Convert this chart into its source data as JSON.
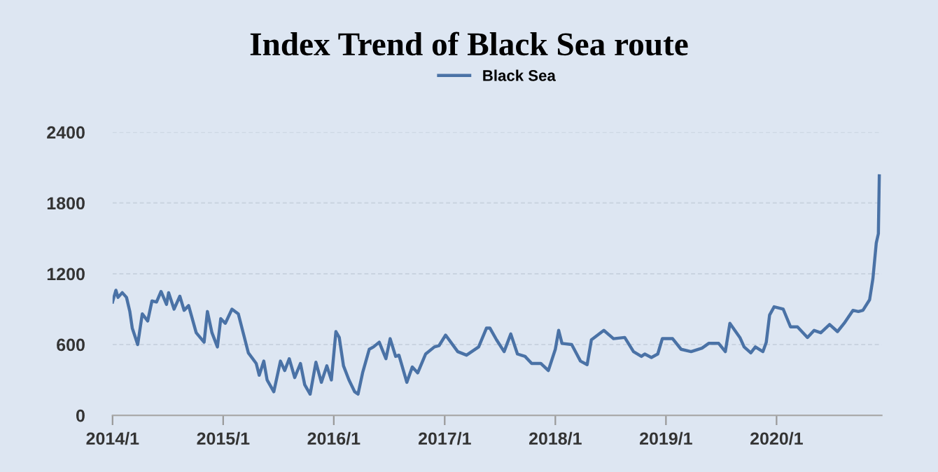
{
  "chart_data": {
    "type": "line",
    "title": "Index Trend of Black Sea route",
    "x": [
      "2014-01-01",
      "2014-01-12",
      "2014-01-19",
      "2014-02-02",
      "2014-02-16",
      "2014-02-27",
      "2014-03-07",
      "2014-03-25",
      "2014-04-09",
      "2014-04-27",
      "2014-05-11",
      "2014-05-26",
      "2014-06-10",
      "2014-06-28",
      "2014-07-05",
      "2014-07-23",
      "2014-08-11",
      "2014-08-25",
      "2014-09-09",
      "2014-10-04",
      "2014-10-30",
      "2014-11-10",
      "2014-11-25",
      "2014-12-13",
      "2014-12-24",
      "2015-01-08",
      "2015-01-30",
      "2015-02-20",
      "2015-03-10",
      "2015-03-25",
      "2015-04-20",
      "2015-04-30",
      "2015-05-15",
      "2015-05-26",
      "2015-06-17",
      "2015-07-09",
      "2015-07-23",
      "2015-08-07",
      "2015-08-25",
      "2015-09-13",
      "2015-09-27",
      "2015-10-15",
      "2015-11-03",
      "2015-11-21",
      "2015-12-09",
      "2015-12-24",
      "2016-01-08",
      "2016-01-19",
      "2016-02-02",
      "2016-02-20",
      "2016-03-10",
      "2016-03-21",
      "2016-04-05",
      "2016-04-27",
      "2016-05-11",
      "2016-05-30",
      "2016-06-21",
      "2016-07-05",
      "2016-07-23",
      "2016-08-03",
      "2016-08-29",
      "2016-09-16",
      "2016-10-04",
      "2016-10-30",
      "2016-11-28",
      "2016-12-13",
      "2017-01-04",
      "2017-02-13",
      "2017-03-14",
      "2017-04-23",
      "2017-05-19",
      "2017-05-30",
      "2017-06-21",
      "2017-07-16",
      "2017-08-07",
      "2017-08-29",
      "2017-09-23",
      "2017-10-15",
      "2017-11-14",
      "2017-12-09",
      "2018-01-01",
      "2018-01-12",
      "2018-01-23",
      "2018-02-24",
      "2018-03-25",
      "2018-04-16",
      "2018-04-30",
      "2018-06-10",
      "2018-07-12",
      "2018-08-18",
      "2018-09-16",
      "2018-10-12",
      "2018-10-23",
      "2018-11-14",
      "2018-12-05",
      "2018-12-20",
      "2019-01-23",
      "2019-02-20",
      "2019-03-25",
      "2019-04-30",
      "2019-05-22",
      "2019-06-24",
      "2019-07-16",
      "2019-07-31",
      "2019-09-02",
      "2019-09-16",
      "2019-10-08",
      "2019-10-23",
      "2019-11-17",
      "2019-11-28",
      "2019-12-09",
      "2019-12-24",
      "2020-01-23",
      "2020-02-16",
      "2020-03-10",
      "2020-04-12",
      "2020-05-04",
      "2020-05-26",
      "2020-06-24",
      "2020-07-20",
      "2020-08-11",
      "2020-09-09",
      "2020-09-27",
      "2020-10-12",
      "2020-11-03",
      "2020-11-14",
      "2020-11-25",
      "2020-12-02",
      "2020-12-05"
    ],
    "series": [
      {
        "name": "Black Sea",
        "color": "#4a72a6",
        "values": [
          960,
          1060,
          1000,
          1040,
          1000,
          880,
          740,
          600,
          860,
          800,
          970,
          960,
          1050,
          940,
          1040,
          900,
          1010,
          890,
          930,
          700,
          620,
          880,
          700,
          580,
          820,
          780,
          900,
          860,
          680,
          530,
          440,
          340,
          460,
          300,
          200,
          460,
          380,
          480,
          320,
          440,
          260,
          180,
          450,
          280,
          420,
          300,
          710,
          660,
          420,
          300,
          200,
          180,
          360,
          560,
          580,
          620,
          480,
          650,
          500,
          510,
          280,
          410,
          360,
          520,
          580,
          590,
          680,
          540,
          510,
          580,
          740,
          740,
          640,
          540,
          690,
          520,
          500,
          440,
          440,
          380,
          560,
          720,
          610,
          600,
          460,
          430,
          640,
          720,
          650,
          660,
          540,
          500,
          520,
          490,
          520,
          650,
          650,
          560,
          540,
          570,
          610,
          610,
          540,
          780,
          660,
          580,
          530,
          580,
          540,
          620,
          850,
          920,
          900,
          750,
          750,
          660,
          720,
          700,
          770,
          710,
          780,
          890,
          880,
          890,
          980,
          1160,
          1460,
          1540,
          2030
        ]
      }
    ],
    "xlim": [
      "2014-01-01",
      "2020-12-13"
    ],
    "xticks": [
      {
        "value": "2014-01-01",
        "label": "2014/1"
      },
      {
        "value": "2015-01-01",
        "label": "2015/1"
      },
      {
        "value": "2016-01-01",
        "label": "2016/1"
      },
      {
        "value": "2017-01-01",
        "label": "2017/1"
      },
      {
        "value": "2018-01-01",
        "label": "2018/1"
      },
      {
        "value": "2019-01-01",
        "label": "2019/1"
      },
      {
        "value": "2020-01-01",
        "label": "2020/1"
      }
    ],
    "ylim": [
      0,
      2400
    ],
    "yticks": [
      0,
      600,
      1200,
      1800,
      2400
    ],
    "grid": "y",
    "legend": "top",
    "line_style": "solid",
    "marker": "none"
  }
}
